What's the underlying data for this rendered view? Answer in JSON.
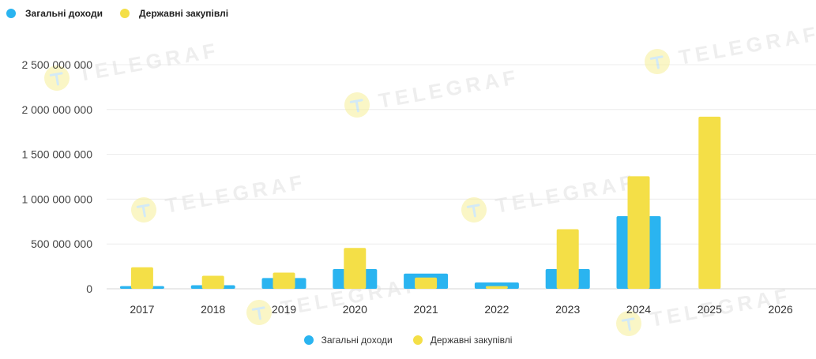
{
  "legend": {
    "items": [
      {
        "label": "Загальні доходи",
        "color": "#2ab4f0"
      },
      {
        "label": "Державні закупівлі",
        "color": "#f4df47"
      }
    ]
  },
  "watermark": {
    "text": "TELEGRAF"
  },
  "chart_data": {
    "type": "bar",
    "categories": [
      "2017",
      "2018",
      "2019",
      "2020",
      "2021",
      "2022",
      "2023",
      "2024",
      "2025",
      "2026"
    ],
    "series": [
      {
        "name": "Загальні доходи",
        "color": "#2ab4f0",
        "values": [
          30000000,
          40000000,
          120000000,
          220000000,
          170000000,
          70000000,
          220000000,
          810000000,
          0,
          0
        ]
      },
      {
        "name": "Державні закупівлі",
        "color": "#f4df47",
        "values": [
          240000000,
          145000000,
          180000000,
          455000000,
          125000000,
          30000000,
          665000000,
          1255000000,
          1920000000,
          0
        ]
      }
    ],
    "ylim": [
      0,
      2500000000
    ],
    "yticks": [
      0,
      500000000,
      1000000000,
      1500000000,
      2000000000,
      2500000000
    ],
    "ytick_labels": [
      "0",
      "500 000 000",
      "1 000 000 000",
      "1 500 000 000",
      "2 000 000 000",
      "2 500 000 000"
    ],
    "grid": true,
    "legend_position": "top-left and bottom-center"
  }
}
